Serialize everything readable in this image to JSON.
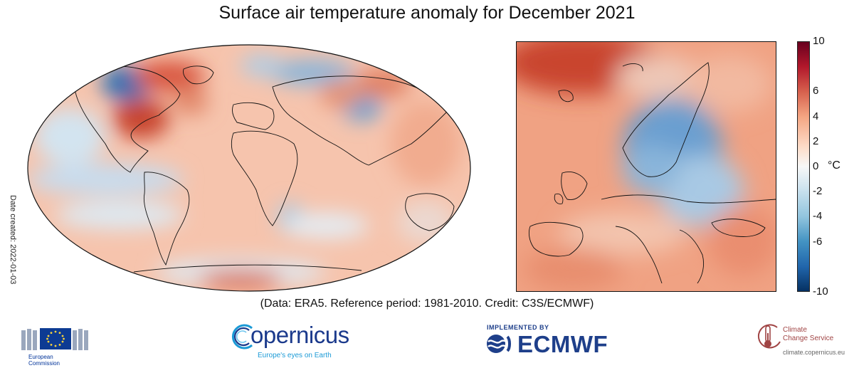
{
  "title": "Surface air temperature anomaly for December 2021",
  "date_created": "Date created: 2022-01-03",
  "credit": "(Data: ERA5.  Reference period: 1981-2010.  Credit: C3S/ECMWF)",
  "colorbar": {
    "unit": "°C",
    "range": [
      -10,
      10
    ],
    "ticks": [
      "10",
      "6",
      "4",
      "2",
      "0",
      "-2",
      "-4",
      "-6",
      "-10"
    ],
    "colors": [
      "#67001f",
      "#b2182b",
      "#d6604d",
      "#f4a582",
      "#fddbc7",
      "#f7f7f7",
      "#d1e5f0",
      "#92c5de",
      "#4393c3",
      "#2166ac",
      "#053061"
    ]
  },
  "maps": {
    "world": "global-map",
    "europe": "europe-map"
  },
  "logos": {
    "ec_line1": "European",
    "ec_line2": "Commission",
    "copernicus_word": "opernicus",
    "copernicus_tagline": "Europe's eyes on Earth",
    "ecmwf_implemented": "IMPLEMENTED BY",
    "ecmwf_word": "ECMWF",
    "c3s_line1": "Climate",
    "c3s_line2": "Change Service",
    "c3s_url": "climate.copernicus.eu"
  }
}
